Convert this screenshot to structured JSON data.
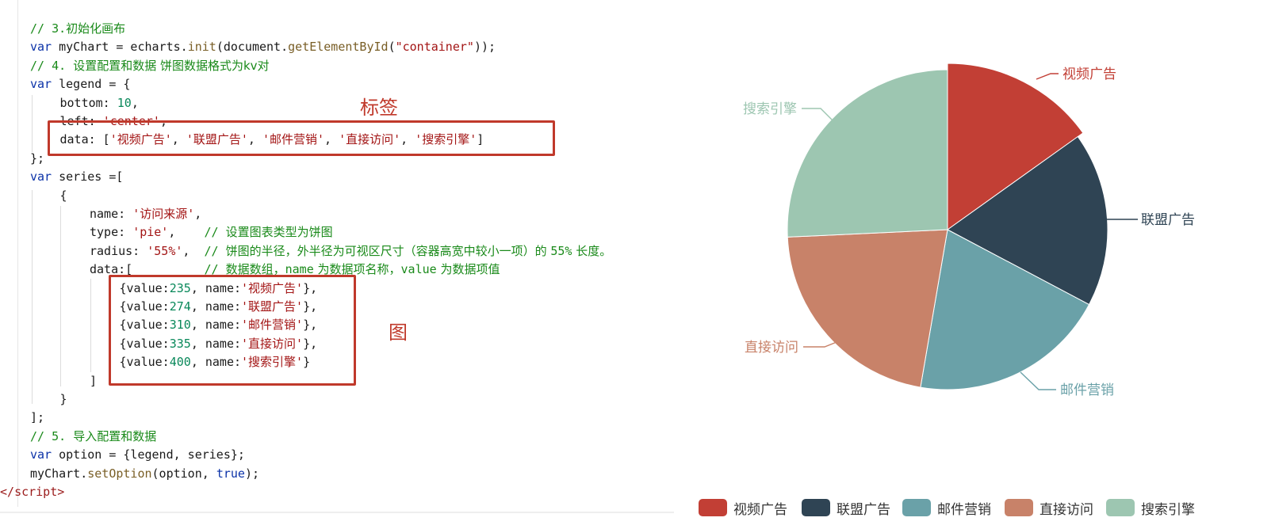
{
  "code": {
    "lines": [
      {
        "indent": 0,
        "tokens": [
          {
            "t": "// 3.",
            "c": "cmm"
          },
          {
            "t": "初始化画布",
            "c": "cm"
          }
        ]
      },
      {
        "indent": 0,
        "tokens": [
          {
            "t": "var",
            "c": "kw"
          },
          {
            "t": " myChart = echarts."
          },
          {
            "t": "init",
            "c": "fn"
          },
          {
            "t": "(document."
          },
          {
            "t": "getElementById",
            "c": "fn"
          },
          {
            "t": "("
          },
          {
            "t": "\"container\"",
            "c": "str"
          },
          {
            "t": "));"
          }
        ]
      },
      {
        "indent": 0,
        "tokens": [
          {
            "t": "// 4. ",
            "c": "cmm"
          },
          {
            "t": "设置配置和数据 饼图数据格式为kv对",
            "c": "cm"
          }
        ]
      },
      {
        "indent": 0,
        "tokens": [
          {
            "t": "var",
            "c": "kw"
          },
          {
            "t": " legend = {"
          }
        ]
      },
      {
        "indent": 1,
        "tokens": [
          {
            "t": "bottom: "
          },
          {
            "t": "10",
            "c": "num"
          },
          {
            "t": ","
          }
        ]
      },
      {
        "indent": 1,
        "tokens": [
          {
            "t": "left: "
          },
          {
            "t": "'center'",
            "c": "str"
          },
          {
            "t": ","
          }
        ]
      },
      {
        "indent": 1,
        "tokens": [
          {
            "t": "data: ["
          },
          {
            "t": "'视频广告'",
            "c": "str"
          },
          {
            "t": ", "
          },
          {
            "t": "'联盟广告'",
            "c": "str"
          },
          {
            "t": ", "
          },
          {
            "t": "'邮件营销'",
            "c": "str"
          },
          {
            "t": ", "
          },
          {
            "t": "'直接访问'",
            "c": "str"
          },
          {
            "t": ", "
          },
          {
            "t": "'搜索引擎'",
            "c": "str"
          },
          {
            "t": "]"
          }
        ]
      },
      {
        "indent": 0,
        "tokens": [
          {
            "t": "};"
          }
        ]
      },
      {
        "indent": 0,
        "tokens": [
          {
            "t": "var",
            "c": "kw"
          },
          {
            "t": " series =["
          }
        ]
      },
      {
        "indent": 1,
        "tokens": [
          {
            "t": "{"
          }
        ]
      },
      {
        "indent": 2,
        "tokens": [
          {
            "t": "name: "
          },
          {
            "t": "'访问来源'",
            "c": "str"
          },
          {
            "t": ","
          }
        ]
      },
      {
        "indent": 2,
        "tokens": [
          {
            "t": "type: "
          },
          {
            "t": "'pie'",
            "c": "str"
          },
          {
            "t": ",    "
          },
          {
            "t": "// ",
            "c": "cmm"
          },
          {
            "t": "设置图表类型为饼图",
            "c": "cm"
          }
        ]
      },
      {
        "indent": 2,
        "tokens": [
          {
            "t": "radius: "
          },
          {
            "t": "'55%'",
            "c": "str"
          },
          {
            "t": ",  "
          },
          {
            "t": "// ",
            "c": "cmm"
          },
          {
            "t": "饼图的半径，外半径为可视区尺寸（容器高宽中较小一项）的 ",
            "c": "cm"
          },
          {
            "t": "55%",
            "c": "cmm"
          },
          {
            "t": " 长度。",
            "c": "cm"
          }
        ]
      },
      {
        "indent": 2,
        "tokens": [
          {
            "t": "data:["
          },
          {
            "t": "          "
          },
          {
            "t": "// ",
            "c": "cmm"
          },
          {
            "t": "数据数组，",
            "c": "cm"
          },
          {
            "t": "name",
            "c": "cmm"
          },
          {
            "t": " 为数据项名称，",
            "c": "cm"
          },
          {
            "t": "value",
            "c": "cmm"
          },
          {
            "t": " 为数据项值",
            "c": "cm"
          }
        ]
      },
      {
        "indent": 3,
        "tokens": [
          {
            "t": "{value:"
          },
          {
            "t": "235",
            "c": "num"
          },
          {
            "t": ", name:"
          },
          {
            "t": "'视频广告'",
            "c": "str"
          },
          {
            "t": "},"
          }
        ]
      },
      {
        "indent": 3,
        "tokens": [
          {
            "t": "{value:"
          },
          {
            "t": "274",
            "c": "num"
          },
          {
            "t": ", name:"
          },
          {
            "t": "'联盟广告'",
            "c": "str"
          },
          {
            "t": "},"
          }
        ]
      },
      {
        "indent": 3,
        "tokens": [
          {
            "t": "{value:"
          },
          {
            "t": "310",
            "c": "num"
          },
          {
            "t": ", name:"
          },
          {
            "t": "'邮件营销'",
            "c": "str"
          },
          {
            "t": "},"
          }
        ]
      },
      {
        "indent": 3,
        "tokens": [
          {
            "t": "{value:"
          },
          {
            "t": "335",
            "c": "num"
          },
          {
            "t": ", name:"
          },
          {
            "t": "'直接访问'",
            "c": "str"
          },
          {
            "t": "},"
          }
        ]
      },
      {
        "indent": 3,
        "tokens": [
          {
            "t": "{value:"
          },
          {
            "t": "400",
            "c": "num"
          },
          {
            "t": ", name:"
          },
          {
            "t": "'搜索引擎'",
            "c": "str"
          },
          {
            "t": "}"
          }
        ]
      },
      {
        "indent": 2,
        "tokens": [
          {
            "t": "]"
          }
        ]
      },
      {
        "indent": 1,
        "tokens": [
          {
            "t": "}"
          }
        ]
      },
      {
        "indent": 0,
        "tokens": [
          {
            "t": "];"
          }
        ]
      },
      {
        "indent": 0,
        "tokens": [
          {
            "t": "// 5. ",
            "c": "cmm"
          },
          {
            "t": "导入配置和数据",
            "c": "cm"
          }
        ]
      },
      {
        "indent": 0,
        "tokens": [
          {
            "t": "var",
            "c": "kw"
          },
          {
            "t": " option = {legend, series};"
          }
        ]
      },
      {
        "indent": 0,
        "tokens": [
          {
            "t": "myChart."
          },
          {
            "t": "setOption",
            "c": "fn"
          },
          {
            "t": "(option, "
          },
          {
            "t": "true",
            "c": "kw"
          },
          {
            "t": ");"
          }
        ]
      },
      {
        "indent": -1,
        "tokens": [
          {
            "t": "</",
            "c": "tag"
          },
          {
            "t": "script",
            "c": "tag"
          },
          {
            "t": ">",
            "c": "tag"
          }
        ]
      }
    ]
  },
  "annotations": {
    "legend_label": "标签",
    "chart_label": "图"
  },
  "chart_data": {
    "type": "pie",
    "title": "",
    "series_name": "访问来源",
    "radius": "55%",
    "legend_position": "bottom-center",
    "slices": [
      {
        "name": "视频广告",
        "value": 235,
        "color": "#c23f35"
      },
      {
        "name": "联盟广告",
        "value": 274,
        "color": "#2f4454"
      },
      {
        "name": "邮件营销",
        "value": 310,
        "color": "#6aa1a8"
      },
      {
        "name": "直接访问",
        "value": 335,
        "color": "#c88269"
      },
      {
        "name": "搜索引擎",
        "value": 400,
        "color": "#9dc6b1"
      }
    ]
  }
}
